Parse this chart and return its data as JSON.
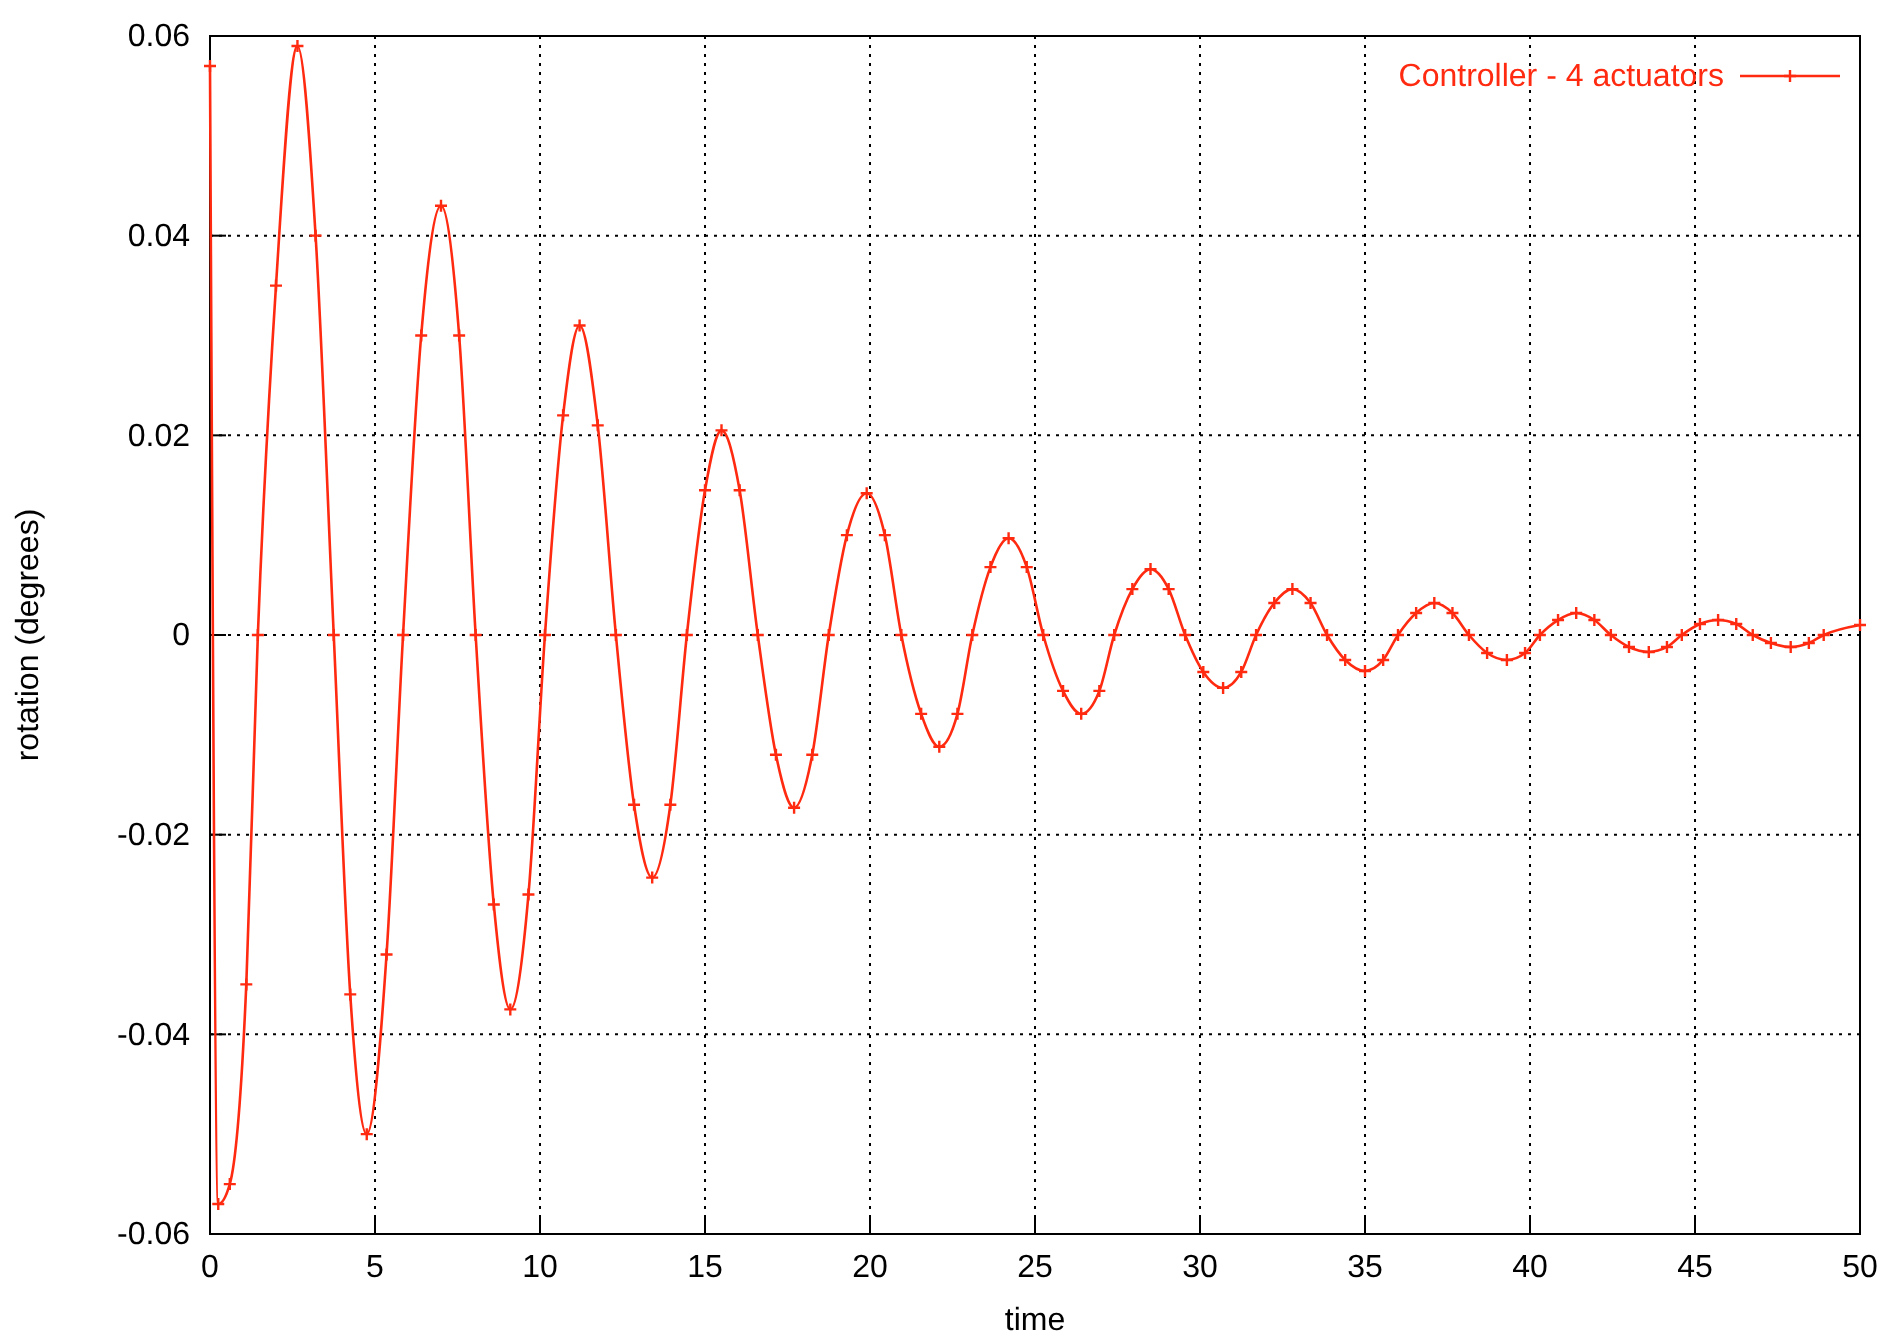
{
  "chart_data": {
    "type": "line",
    "xlabel": "time",
    "ylabel": "rotation (degrees)",
    "xlim": [
      0,
      50
    ],
    "xticks": [
      0,
      5,
      10,
      15,
      20,
      25,
      30,
      35,
      40,
      45,
      50
    ],
    "ylim": [
      -0.06,
      0.06
    ],
    "yticks": [
      -0.06,
      -0.04,
      -0.02,
      0,
      0.02,
      0.04,
      0.06
    ],
    "grid": true,
    "legend": "top right",
    "marker": "cross",
    "line_style": "solid",
    "series": [
      {
        "name": "Controller - 4 actuators",
        "color": "#ff2a10",
        "x": [
          0,
          0.25,
          0.6,
          1.1,
          1.45,
          2.0,
          2.65,
          3.2,
          3.75,
          4.25,
          4.75,
          5.35,
          5.85,
          6.4,
          7.0,
          7.55,
          8.05,
          8.6,
          9.1,
          9.65,
          10.15,
          10.7,
          11.2,
          11.75,
          12.3,
          12.85,
          13.4,
          13.95,
          14.45,
          15.0,
          15.5,
          16.05,
          16.6,
          17.15,
          17.7,
          18.25,
          18.75,
          19.3,
          19.9,
          20.45,
          20.95,
          21.55,
          22.1,
          22.65,
          23.1,
          23.65,
          24.2,
          24.75,
          25.25,
          25.85,
          26.4,
          26.95,
          27.4,
          27.95,
          28.5,
          29.05,
          29.55,
          30.1,
          30.7,
          31.25,
          31.7,
          32.25,
          32.8,
          33.35,
          33.85,
          34.4,
          35.0,
          35.55,
          36.0,
          36.55,
          37.1,
          37.65,
          38.15,
          38.7,
          39.3,
          39.85,
          40.3,
          40.85,
          41.4,
          41.95,
          42.45,
          43.0,
          43.6,
          44.15,
          44.6,
          45.15,
          45.7,
          46.25,
          46.75,
          47.3,
          47.9,
          48.45,
          48.9,
          50
        ],
        "values": [
          0.057,
          -0.057,
          -0.055,
          -0.035,
          0,
          0.035,
          0.059,
          0.04,
          0,
          -0.036,
          -0.05,
          -0.032,
          0,
          0.03,
          0.043,
          0.03,
          0,
          -0.027,
          -0.0375,
          -0.026,
          0,
          0.022,
          0.031,
          0.021,
          0,
          -0.017,
          -0.0243,
          -0.017,
          0,
          0.0145,
          0.0205,
          0.0145,
          0,
          -0.012,
          -0.0173,
          -0.012,
          0,
          0.01,
          0.0142,
          0.01,
          0,
          -0.0079,
          -0.0112,
          -0.0079,
          0,
          0.0068,
          0.0097,
          0.0068,
          0,
          -0.0056,
          -0.0079,
          -0.0056,
          0,
          0.0046,
          0.0066,
          0.0046,
          0,
          -0.0037,
          -0.0053,
          -0.0037,
          0,
          0.0032,
          0.0046,
          0.0032,
          0,
          -0.0025,
          -0.0036,
          -0.0025,
          0,
          0.0022,
          0.0032,
          0.0022,
          0,
          -0.0018,
          -0.0025,
          -0.0018,
          0,
          0.0015,
          0.0022,
          0.0015,
          0,
          -0.0012,
          -0.0017,
          -0.0012,
          0,
          0.0011,
          0.0015,
          0.0011,
          0,
          -0.0008,
          -0.0012,
          -0.0008,
          0,
          0.001
        ]
      }
    ]
  }
}
